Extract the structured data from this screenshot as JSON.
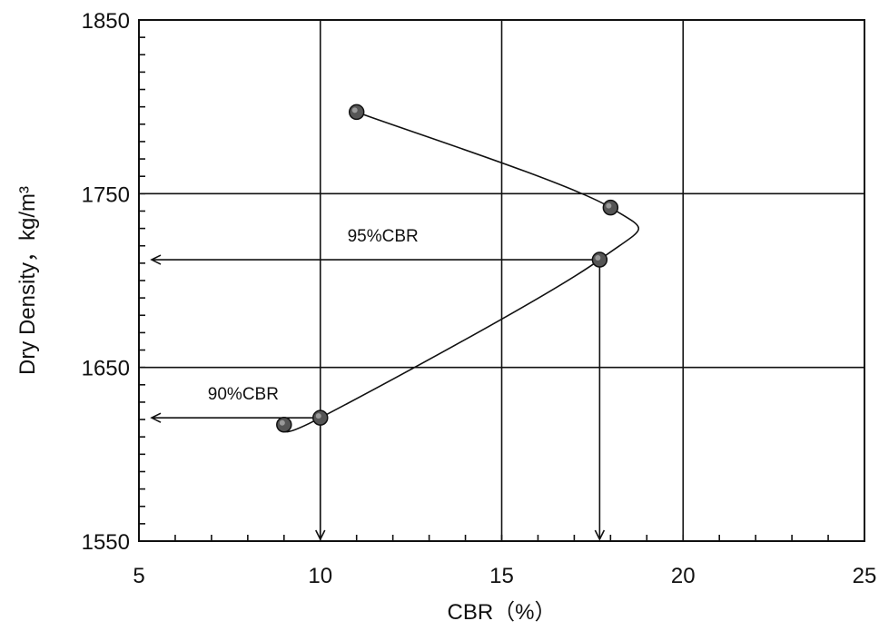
{
  "chart_data": {
    "type": "line",
    "xlabel": "CBR（%）",
    "ylabel": "Dry Density，kg/m³",
    "xlim": [
      5,
      25
    ],
    "ylim": [
      1550,
      1850
    ],
    "x_ticks": [
      "5",
      "10",
      "15",
      "20",
      "25"
    ],
    "y_ticks": [
      "1550",
      "1650",
      "1750",
      "1850"
    ],
    "x_tick_values": [
      5,
      10,
      15,
      20,
      25
    ],
    "y_tick_values": [
      1550,
      1650,
      1750,
      1850
    ],
    "grid": true,
    "series": [
      {
        "points": [
          {
            "x": 11.0,
            "y": 1797
          },
          {
            "x": 18.0,
            "y": 1742
          },
          {
            "x": 17.7,
            "y": 1712
          },
          {
            "x": 10.0,
            "y": 1621
          },
          {
            "x": 9.0,
            "y": 1617
          }
        ]
      }
    ],
    "annotations": [
      {
        "text": "95%CBR",
        "x_value": 17.7,
        "y_value": 1712
      },
      {
        "text": "90%CBR",
        "x_value": 10.0,
        "y_value": 1621
      }
    ]
  }
}
